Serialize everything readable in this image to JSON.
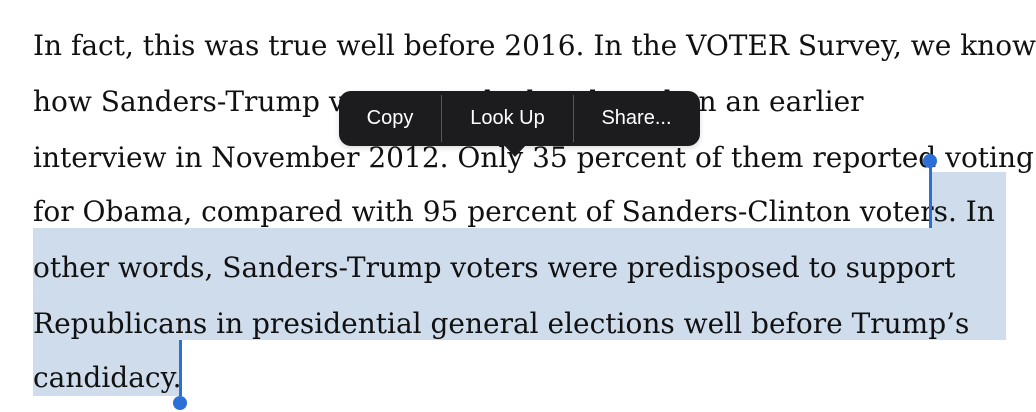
{
  "article": {
    "lines": [
      "In fact, this was true well before 2016. In the VOTER Survey, we know",
      "how Sanders-Trump voters stacked up based on an earlier",
      "interview in November 2012. Only 35 percent of them reported voting",
      "for Obama, compared with 95 percent of Sanders-Clinton voters. In",
      "other words, Sanders-Trump voters were predisposed to support",
      "Republicans in presidential general elections well before Trump’s",
      "candidacy."
    ]
  },
  "context_menu": {
    "copy": "Copy",
    "look_up": "Look Up",
    "share": "Share..."
  },
  "colors": {
    "selection": "#cfdcec",
    "handle": "#2c6fd6",
    "menu_bg": "#1c1c1e"
  }
}
